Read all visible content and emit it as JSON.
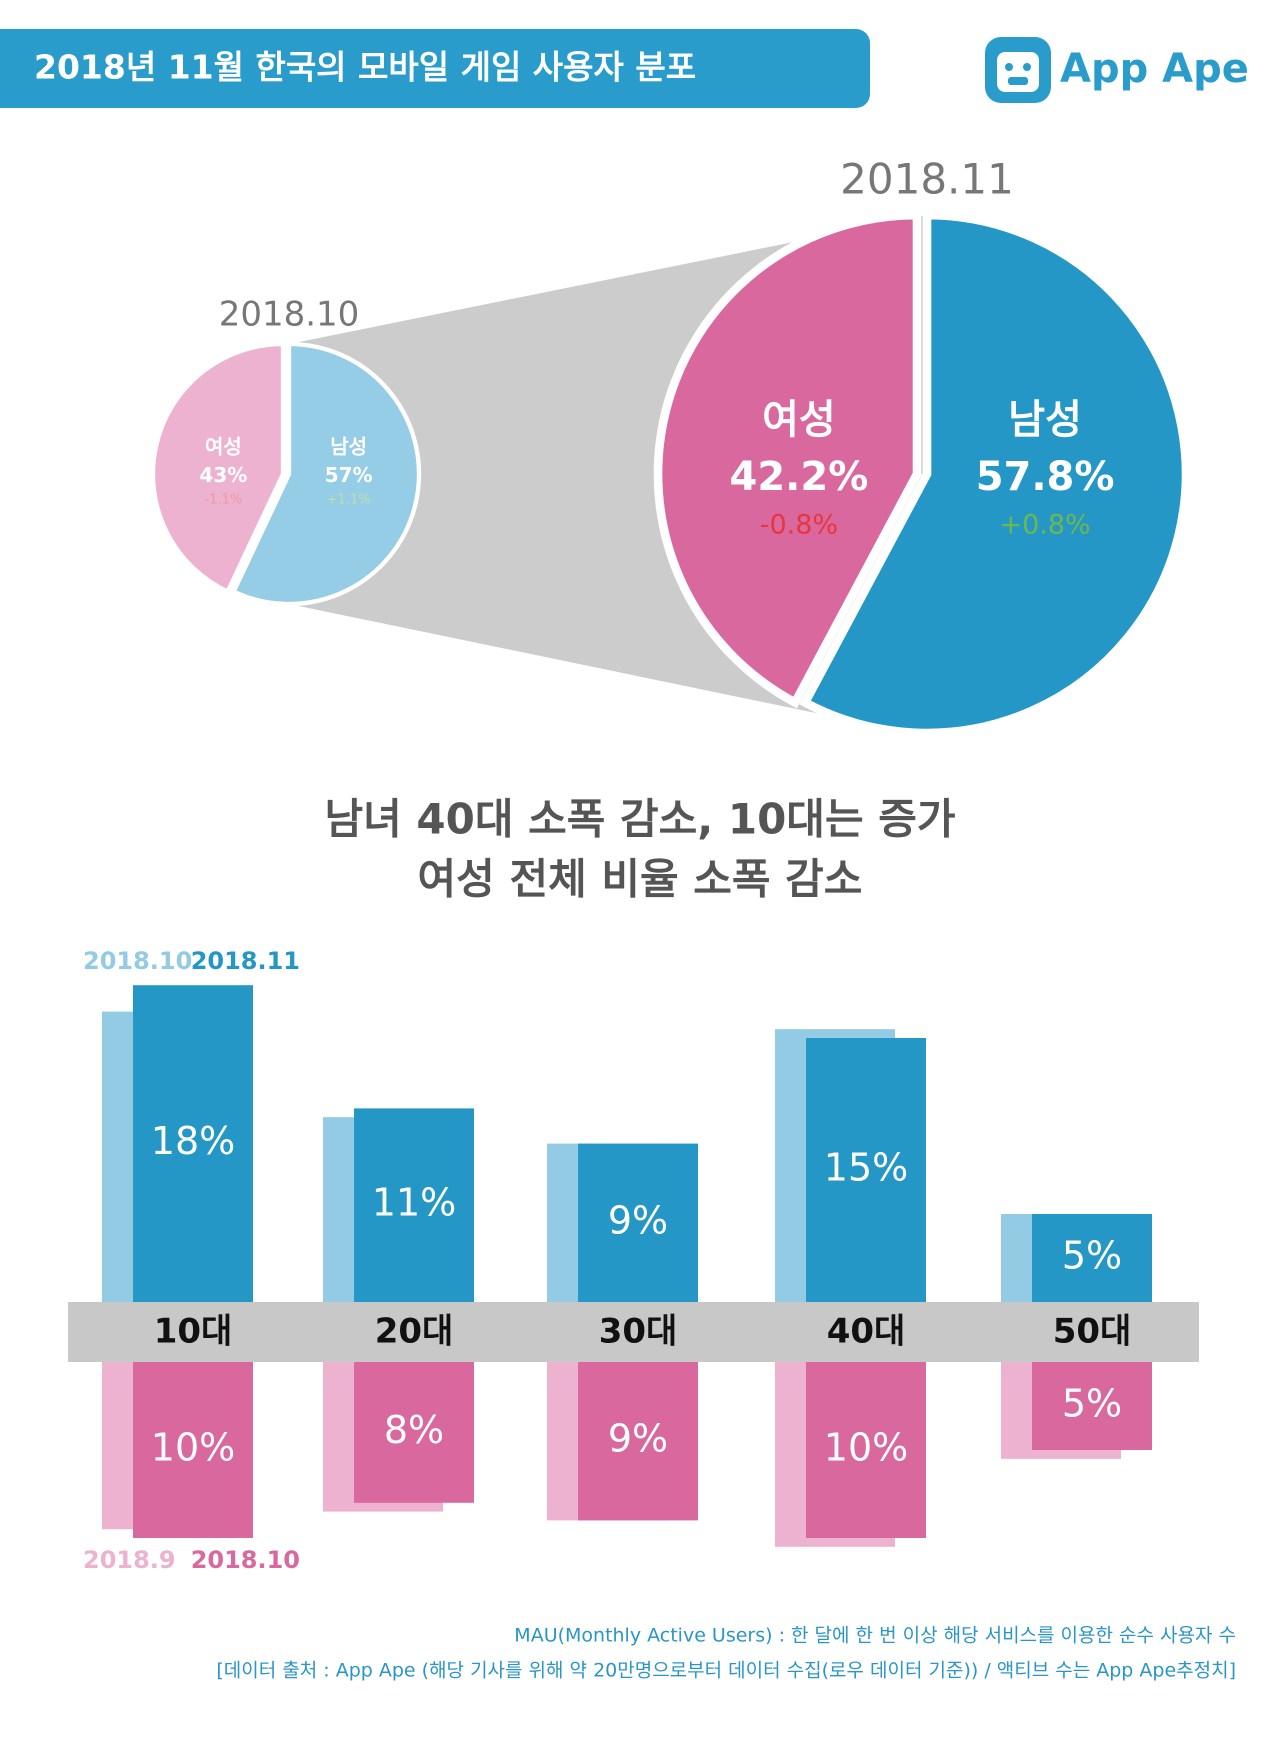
{
  "header": {
    "title": "2018년 11월 한국의 모바일 게임 사용자 분포",
    "logo": "App Ape"
  },
  "chart_data": [
    {
      "type": "pie",
      "title": "2018.10",
      "categories": [
        "남성",
        "여성"
      ],
      "values": [
        57,
        43
      ],
      "value_labels": [
        "57%",
        "43%"
      ],
      "changes": [
        1.1,
        -1.1
      ],
      "change_labels": [
        "+1.1%",
        "-1.1%"
      ],
      "colors": [
        "#95cce6",
        "#edb2d0"
      ],
      "change_colors": [
        "#bfe0a8",
        "#ee9a9a"
      ]
    },
    {
      "type": "pie",
      "title": "2018.11",
      "categories": [
        "남성",
        "여성"
      ],
      "values": [
        57.8,
        42.2
      ],
      "value_labels": [
        "57.8%",
        "42.2%"
      ],
      "changes": [
        0.8,
        -0.8
      ],
      "change_labels": [
        "+0.8%",
        "-0.8%"
      ],
      "colors": [
        "#2597c7",
        "#d9689f"
      ],
      "change_colors": [
        "#6cb84e",
        "#e8363d"
      ]
    },
    {
      "type": "bar",
      "categories": [
        "10대",
        "20대",
        "30대",
        "40대",
        "50대"
      ],
      "panels": [
        {
          "series": [
            {
              "name": "2018.10",
              "color": "#93cae4",
              "values": [
                16.5,
                10.5,
                9,
                15.5,
                5
              ]
            },
            {
              "name": "2018.11",
              "color": "#2597c7",
              "values": [
                18,
                11,
                9,
                15,
                5
              ],
              "value_labels": [
                "18%",
                "11%",
                "9%",
                "15%",
                "5%"
              ]
            }
          ]
        },
        {
          "series": [
            {
              "name": "2018.9",
              "color": "#edb2d0",
              "values": [
                9.5,
                8.5,
                9,
                10.5,
                5.5
              ]
            },
            {
              "name": "2018.10",
              "color": "#d9689f",
              "values": [
                10,
                8,
                9,
                10,
                5
              ],
              "value_labels": [
                "10%",
                "8%",
                "9%",
                "10%",
                "5%"
              ]
            }
          ]
        }
      ]
    }
  ],
  "headline": [
    "남녀 40대 소폭 감소, 10대는 증가",
    "여성 전체 비율 소폭 감소"
  ],
  "footnotes": [
    "MAU(Monthly Active Users) : 한 달에 한 번 이상 해당 서비스를 이용한 순수 사용자 수",
    "[데이터 출처 : App Ape (해당 기사를 위해 약 20만명으로부터 데이터 수집(로우 데이터 기준)) / 액티브 수는 App Ape추정치]"
  ]
}
